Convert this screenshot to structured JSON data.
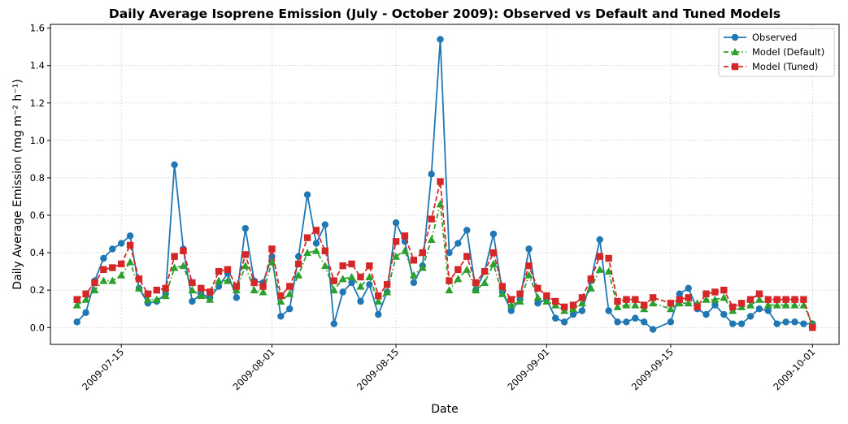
{
  "chart_data": {
    "type": "line",
    "title": "Daily Average Isoprene Emission (July - October 2009): Observed vs Default and Tuned Models",
    "xlabel": "Date",
    "ylabel": "Daily Average Emission (mg m⁻² h⁻¹)",
    "ylim": [
      -0.09,
      1.62
    ],
    "xlim": [
      "2009-07-07",
      "2009-10-04"
    ],
    "yticks": [
      0.0,
      0.2,
      0.4,
      0.6,
      0.8,
      1.0,
      1.2,
      1.4,
      1.6
    ],
    "ytick_labels": [
      "0.0",
      "0.2",
      "0.4",
      "0.6",
      "0.8",
      "1.0",
      "1.2",
      "1.4",
      "1.6"
    ],
    "xticks": [
      "2009-07-15",
      "2009-08-01",
      "2009-08-15",
      "2009-09-01",
      "2009-09-15",
      "2009-10-01"
    ],
    "xtick_labels": [
      "2009-07-15",
      "2009-08-01",
      "2009-08-15",
      "2009-09-01",
      "2009-09-15",
      "2009-10-01"
    ],
    "grid": true,
    "legend_position": "top-right",
    "x": [
      "2009-07-10",
      "2009-07-11",
      "2009-07-12",
      "2009-07-13",
      "2009-07-14",
      "2009-07-15",
      "2009-07-16",
      "2009-07-17",
      "2009-07-18",
      "2009-07-19",
      "2009-07-20",
      "2009-07-21",
      "2009-07-22",
      "2009-07-23",
      "2009-07-24",
      "2009-07-25",
      "2009-07-26",
      "2009-07-27",
      "2009-07-28",
      "2009-07-29",
      "2009-07-30",
      "2009-07-31",
      "2009-08-01",
      "2009-08-02",
      "2009-08-03",
      "2009-08-04",
      "2009-08-05",
      "2009-08-06",
      "2009-08-07",
      "2009-08-08",
      "2009-08-09",
      "2009-08-10",
      "2009-08-11",
      "2009-08-12",
      "2009-08-13",
      "2009-08-14",
      "2009-08-15",
      "2009-08-16",
      "2009-08-17",
      "2009-08-18",
      "2009-08-19",
      "2009-08-20",
      "2009-08-21",
      "2009-08-22",
      "2009-08-23",
      "2009-08-24",
      "2009-08-25",
      "2009-08-26",
      "2009-08-27",
      "2009-08-28",
      "2009-08-29",
      "2009-08-30",
      "2009-08-31",
      "2009-09-01",
      "2009-09-02",
      "2009-09-03",
      "2009-09-04",
      "2009-09-05",
      "2009-09-06",
      "2009-09-07",
      "2009-09-08",
      "2009-09-09",
      "2009-09-10",
      "2009-09-11",
      "2009-09-12",
      "2009-09-13",
      "2009-09-15",
      "2009-09-16",
      "2009-09-17",
      "2009-09-18",
      "2009-09-19",
      "2009-09-20",
      "2009-09-21",
      "2009-09-22",
      "2009-09-23",
      "2009-09-24",
      "2009-09-25",
      "2009-09-26",
      "2009-09-27",
      "2009-09-28",
      "2009-09-29",
      "2009-09-30",
      "2009-10-01"
    ],
    "series": [
      {
        "name": "Observed",
        "color": "#1f77b4",
        "marker": "circle",
        "linestyle": "solid",
        "values": [
          0.03,
          0.08,
          0.25,
          0.37,
          0.42,
          0.45,
          0.49,
          0.21,
          0.13,
          0.14,
          0.18,
          0.87,
          0.42,
          0.14,
          0.18,
          0.16,
          0.22,
          0.29,
          0.16,
          0.53,
          0.25,
          0.24,
          0.38,
          0.06,
          0.1,
          0.38,
          0.71,
          0.45,
          0.55,
          0.02,
          0.19,
          0.24,
          0.14,
          0.23,
          0.07,
          0.19,
          0.56,
          0.46,
          0.24,
          0.33,
          0.82,
          1.54,
          0.4,
          0.45,
          0.52,
          0.2,
          0.3,
          0.5,
          0.19,
          0.09,
          0.15,
          0.42,
          0.13,
          0.15,
          0.05,
          0.03,
          0.07,
          0.09,
          0.25,
          0.47,
          0.09,
          0.03,
          0.03,
          0.05,
          0.03,
          -0.01,
          0.03,
          0.18,
          0.21,
          0.1,
          0.07,
          0.12,
          0.07,
          0.02,
          0.02,
          0.06,
          0.1,
          0.09,
          0.02,
          0.03,
          0.03,
          0.02,
          0.02
        ]
      },
      {
        "name": "Model (Default)",
        "color": "#2ca02c",
        "marker": "triangle",
        "linestyle": "dash-dot",
        "values": [
          0.12,
          0.15,
          0.2,
          0.25,
          0.25,
          0.28,
          0.35,
          0.21,
          0.15,
          0.15,
          0.17,
          0.32,
          0.33,
          0.2,
          0.17,
          0.15,
          0.25,
          0.25,
          0.2,
          0.33,
          0.2,
          0.19,
          0.35,
          0.14,
          0.18,
          0.28,
          0.4,
          0.41,
          0.33,
          0.2,
          0.26,
          0.27,
          0.22,
          0.27,
          0.14,
          0.19,
          0.38,
          0.41,
          0.28,
          0.32,
          0.47,
          0.66,
          0.2,
          0.26,
          0.31,
          0.2,
          0.24,
          0.34,
          0.18,
          0.12,
          0.14,
          0.28,
          0.16,
          0.14,
          0.12,
          0.09,
          0.1,
          0.13,
          0.21,
          0.31,
          0.3,
          0.11,
          0.12,
          0.12,
          0.1,
          0.13,
          0.1,
          0.13,
          0.13,
          0.13,
          0.15,
          0.15,
          0.16,
          0.09,
          0.11,
          0.12,
          0.15,
          0.12,
          0.12,
          0.12,
          0.12,
          0.12,
          0.02
        ]
      },
      {
        "name": "Model (Tuned)",
        "color": "#d62728",
        "marker": "square",
        "linestyle": "dashed",
        "values": [
          0.15,
          0.18,
          0.24,
          0.31,
          0.32,
          0.34,
          0.44,
          0.26,
          0.18,
          0.2,
          0.21,
          0.38,
          0.41,
          0.24,
          0.21,
          0.19,
          0.3,
          0.31,
          0.22,
          0.39,
          0.24,
          0.22,
          0.42,
          0.17,
          0.22,
          0.34,
          0.48,
          0.52,
          0.41,
          0.25,
          0.33,
          0.34,
          0.27,
          0.33,
          0.17,
          0.23,
          0.46,
          0.49,
          0.36,
          0.4,
          0.58,
          0.78,
          0.25,
          0.31,
          0.38,
          0.24,
          0.3,
          0.4,
          0.22,
          0.15,
          0.18,
          0.33,
          0.21,
          0.17,
          0.14,
          0.11,
          0.12,
          0.16,
          0.26,
          0.38,
          0.37,
          0.14,
          0.15,
          0.15,
          0.12,
          0.16,
          0.13,
          0.15,
          0.16,
          0.11,
          0.18,
          0.19,
          0.2,
          0.11,
          0.13,
          0.15,
          0.18,
          0.15,
          0.15,
          0.15,
          0.15,
          0.15,
          0.0
        ]
      }
    ]
  }
}
